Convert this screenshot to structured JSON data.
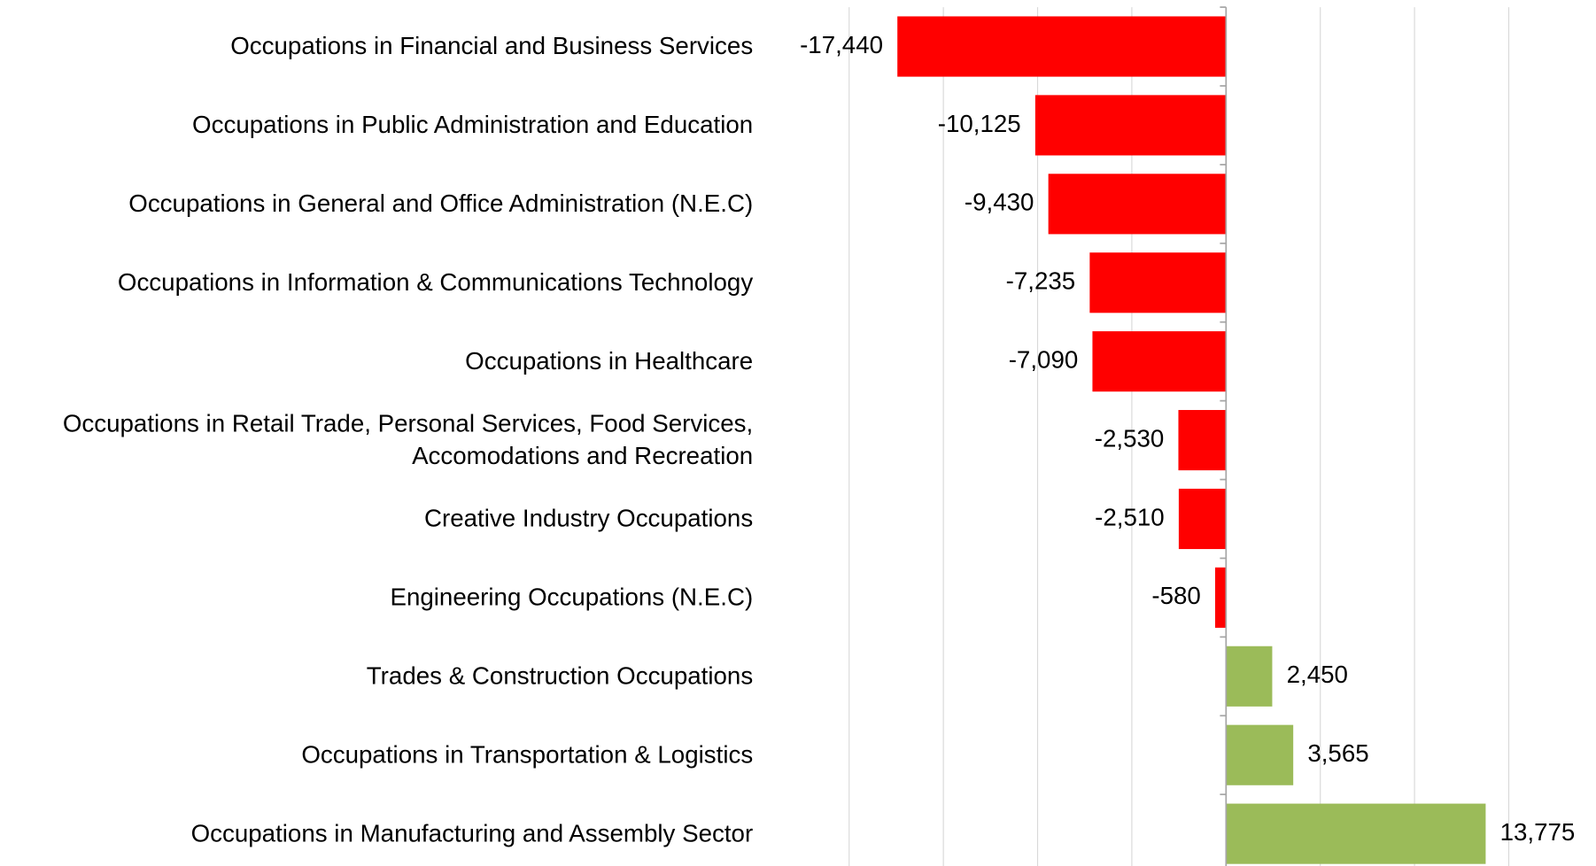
{
  "chart_data": {
    "type": "barh",
    "categories": [
      "Occupations in Financial and Business Services",
      "Occupations in Public Administration and Education",
      "Occupations in General and Office Administration (N.E.C)",
      "Occupations in Information & Communications Technology",
      "Occupations in Healthcare",
      "Occupations in Retail Trade, Personal Services, Food Services, Accomodations and Recreation",
      "Creative Industry Occupations",
      "Engineering Occupations (N.E.C)",
      "Trades & Construction Occupations",
      "Occupations in Transportation & Logistics",
      "Occupations in Manufacturing and Assembly Sector"
    ],
    "values": [
      -17440,
      -10125,
      -9430,
      -7235,
      -7090,
      -2530,
      -2510,
      -580,
      2450,
      3565,
      13775
    ],
    "value_labels": [
      "-17,440",
      "-10,125",
      "-9,430",
      "-7,235",
      "-7,090",
      "-2,530",
      "-2,510",
      "-580",
      "2,450",
      "3,565",
      "13,775"
    ],
    "colors": [
      "#ff0000",
      "#ff0000",
      "#ff0000",
      "#ff0000",
      "#ff0000",
      "#ff0000",
      "#ff0000",
      "#ff0000",
      "#9bbb59",
      "#9bbb59",
      "#9bbb59"
    ],
    "xlim": [
      -20000,
      15000
    ],
    "xticks": [
      -20000,
      -15000,
      -10000,
      -5000,
      0,
      5000,
      10000,
      15000
    ],
    "grid": true
  }
}
